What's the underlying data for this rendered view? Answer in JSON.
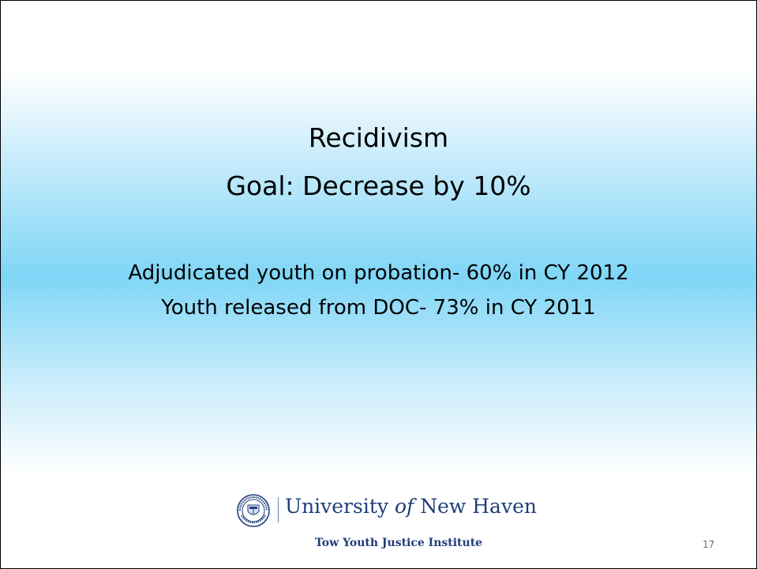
{
  "slide": {
    "title_line1": "Recidivism",
    "title_line2": "Goal: Decrease by 10%",
    "body_lines": [
      "Adjudicated youth on probation- 60% in CY 2012",
      "Youth released from DOC- 73% in CY 2011"
    ],
    "page_number": "17"
  },
  "logo": {
    "name_part1": "University ",
    "name_of": "of",
    "name_part2": " New Haven",
    "subtitle": "Tow Youth Justice Institute",
    "seal_icon": "university-seal-icon",
    "brand_color": "#1f3d7a"
  },
  "colors": {
    "background_top": "#ffffff",
    "background_band": "#7fd6f6",
    "text": "#000000"
  }
}
